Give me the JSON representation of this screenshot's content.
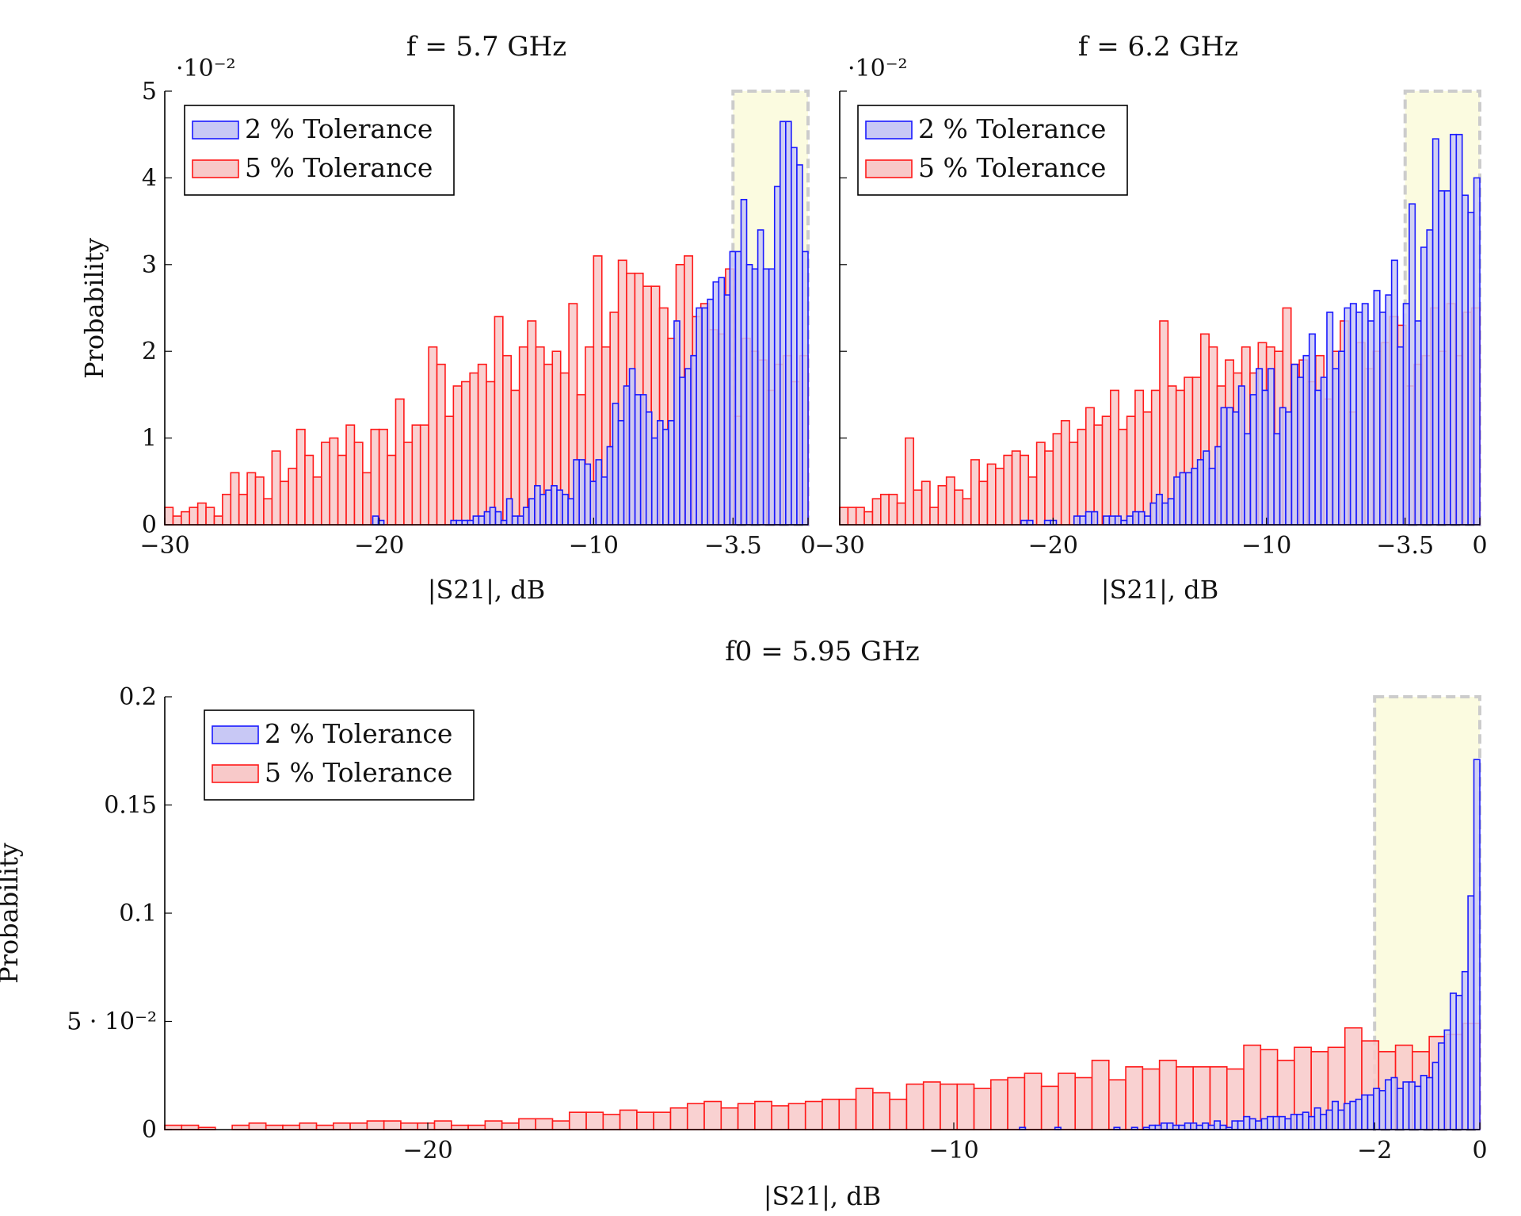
{
  "colors": {
    "tol2_stroke": "#1a1aff",
    "tol2_fill": "#c8c8f5",
    "tol5_stroke": "#ff1a1a",
    "tol5_fill": "#f8c9c9",
    "highlight_fill": "#fbfbe0",
    "highlight_stroke": "#cccccc"
  },
  "chart_data": [
    {
      "type": "bar",
      "title": "f = 5.7 GHz",
      "xlabel": "|S21|, dB",
      "ylabel": "Probability",
      "y_multiplier": "·10⁻²",
      "xlim": [
        -30,
        0
      ],
      "ylim": [
        0,
        5
      ],
      "xticks": [
        -30,
        -20,
        -10,
        -3.5,
        0
      ],
      "xtick_labels": [
        "−30",
        "−20",
        "−10",
        "−3.5",
        "0"
      ],
      "yticks": [
        0,
        1,
        2,
        3,
        4,
        5
      ],
      "ytick_labels": [
        "0",
        "1",
        "2",
        "3",
        "4",
        "5"
      ],
      "highlight_region": [
        -3.5,
        0
      ],
      "legend_position": "top-left",
      "series": [
        {
          "name": "2 % Tolerance",
          "bin_range": [
            -20.3,
            0
          ],
          "values": [
            0.1,
            0.05,
            0,
            0,
            0,
            0,
            0,
            0,
            0,
            0,
            0,
            0,
            0,
            0,
            0.05,
            0.05,
            0.05,
            0.05,
            0.1,
            0.1,
            0.15,
            0.2,
            0.15,
            0.05,
            0.3,
            0.1,
            0.1,
            0.2,
            0.3,
            0.45,
            0.35,
            0.4,
            0.45,
            0.4,
            0.35,
            0.3,
            0.75,
            0.75,
            0.7,
            0.5,
            0.75,
            0.55,
            0.9,
            1.4,
            1.2,
            1.6,
            1.8,
            1.5,
            1.5,
            1.3,
            1.0,
            1.2,
            1.1,
            1.2,
            2.35,
            1.7,
            1.8,
            1.95,
            2.5,
            2.5,
            2.6,
            2.8,
            2.85,
            2.65,
            3.15,
            3.15,
            3.75,
            3.0,
            2.95,
            3.4,
            2.95,
            2.95,
            3.9,
            4.65,
            4.65,
            4.35,
            4.15,
            3.15
          ]
        },
        {
          "name": "5 % Tolerance",
          "bin_range": [
            -30,
            0
          ],
          "values": [
            0.2,
            0.1,
            0.15,
            0.2,
            0.25,
            0.2,
            0.1,
            0.35,
            0.6,
            0.35,
            0.6,
            0.55,
            0.3,
            0.85,
            0.5,
            0.65,
            1.1,
            0.8,
            0.55,
            0.95,
            1.0,
            0.8,
            1.15,
            0.95,
            0.6,
            1.1,
            1.1,
            0.8,
            1.45,
            0.95,
            1.15,
            1.15,
            2.05,
            1.85,
            1.25,
            1.6,
            1.65,
            1.75,
            1.85,
            1.65,
            2.4,
            1.95,
            1.55,
            2.05,
            2.35,
            2.05,
            1.85,
            2.0,
            1.75,
            2.55,
            1.5,
            2.05,
            3.1,
            2.05,
            2.45,
            3.05,
            2.9,
            2.9,
            2.75,
            2.75,
            2.5,
            2.15,
            3.0,
            3.1,
            2.4,
            2.55,
            2.25,
            2.2,
            2.95,
            1.25,
            2.15,
            2.0,
            1.9,
            1.55,
            1.85,
            1.95,
            1.65,
            1.95
          ]
        }
      ]
    },
    {
      "type": "bar",
      "title": "f = 6.2 GHz",
      "xlabel": "|S21|, dB",
      "ylabel": "",
      "y_multiplier": "·10⁻²",
      "xlim": [
        -30,
        0
      ],
      "ylim": [
        0,
        5
      ],
      "xticks": [
        -30,
        -20,
        -10,
        -3.5,
        0
      ],
      "xtick_labels": [
        "−30",
        "−20",
        "−10",
        "−3.5",
        "0"
      ],
      "yticks": [
        0,
        1,
        2,
        3,
        4,
        5
      ],
      "ytick_labels": [
        "",
        "",
        "",
        "",
        "",
        ""
      ],
      "highlight_region": [
        -3.5,
        0
      ],
      "legend_position": "top-left",
      "series": [
        {
          "name": "2 % Tolerance",
          "bin_range": [
            -21.5,
            0
          ],
          "values": [
            0.05,
            0.05,
            0,
            0,
            0.05,
            0.05,
            0,
            0,
            0,
            0.1,
            0.1,
            0.15,
            0.15,
            0,
            0.1,
            0.1,
            0.1,
            0.05,
            0.1,
            0.15,
            0.15,
            0.1,
            0.25,
            0.35,
            0.25,
            0.3,
            0.55,
            0.6,
            0.6,
            0.65,
            0.75,
            0.85,
            0.65,
            0.9,
            1.35,
            1.35,
            1.3,
            1.6,
            1.05,
            1.5,
            1.8,
            1.55,
            1.8,
            1.05,
            1.35,
            1.3,
            1.85,
            1.7,
            1.95,
            2.2,
            1.55,
            1.7,
            2.45,
            1.8,
            2.0,
            2.5,
            2.55,
            2.45,
            2.55,
            2.35,
            2.7,
            2.45,
            2.65,
            3.05,
            2.05,
            2.55,
            3.7,
            2.35,
            3.2,
            3.4,
            4.45,
            3.85,
            3.85,
            4.5,
            4.5,
            3.8,
            3.6,
            4.0
          ]
        },
        {
          "name": "5 % Tolerance",
          "bin_range": [
            -30,
            0
          ],
          "values": [
            0.2,
            0.2,
            0.2,
            0.15,
            0.3,
            0.35,
            0.35,
            0.25,
            1.0,
            0.4,
            0.5,
            0.2,
            0.45,
            0.55,
            0.4,
            0.3,
            0.75,
            0.5,
            0.7,
            0.65,
            0.8,
            0.85,
            0.8,
            0.55,
            0.95,
            0.85,
            1.05,
            1.2,
            0.95,
            1.1,
            1.35,
            1.15,
            1.25,
            1.55,
            1.1,
            1.25,
            1.55,
            1.3,
            1.55,
            2.35,
            1.6,
            1.55,
            1.7,
            1.7,
            2.2,
            2.05,
            1.6,
            1.9,
            1.75,
            2.05,
            1.75,
            2.1,
            2.05,
            2.0,
            2.5,
            1.85,
            1.9,
            1.65,
            1.95,
            1.45,
            2.0,
            2.35,
            1.3,
            2.1,
            1.8,
            2.0,
            2.1,
            2.4,
            2.3,
            1.6,
            1.85,
            1.95,
            2.5,
            2.0,
            2.55,
            1.95,
            2.45,
            2.5
          ]
        }
      ]
    },
    {
      "type": "bar",
      "title": "f0 = 5.95 GHz",
      "xlabel": "|S21|, dB",
      "ylabel": "Probability",
      "y_multiplier": "",
      "xlim": [
        -25,
        0
      ],
      "ylim": [
        0,
        0.2
      ],
      "xticks": [
        -20,
        -10,
        -2,
        0
      ],
      "xtick_labels": [
        "−20",
        "−10",
        "−2",
        "0"
      ],
      "yticks": [
        0,
        0.05,
        0.1,
        0.15,
        0.2
      ],
      "ytick_labels": [
        "0",
        "5 · 10⁻²",
        "0.1",
        "0.15",
        "0.2"
      ],
      "highlight_region": [
        -2,
        0
      ],
      "legend_position": "top-left",
      "series": [
        {
          "name": "2 % Tolerance",
          "bin_range": [
            -8.75,
            0
          ],
          "values": [
            0.001,
            0,
            0,
            0,
            0,
            0,
            0.001,
            0,
            0,
            0,
            0,
            0,
            0,
            0,
            0,
            0,
            0.001,
            0,
            0,
            0.001,
            0,
            0.001,
            0.002,
            0.002,
            0.003,
            0.003,
            0.002,
            0.002,
            0.003,
            0.003,
            0.002,
            0.003,
            0.002,
            0.004,
            0.002,
            0.001,
            0.004,
            0.004,
            0.006,
            0.005,
            0.004,
            0.005,
            0.006,
            0.006,
            0.006,
            0.005,
            0.007,
            0.007,
            0.008,
            0.006,
            0.01,
            0.007,
            0.009,
            0.013,
            0.009,
            0.012,
            0.013,
            0.014,
            0.016,
            0.016,
            0.019,
            0.018,
            0.023,
            0.024,
            0.019,
            0.022,
            0.022,
            0.02,
            0.025,
            0.024,
            0.031,
            0.04,
            0.046,
            0.063,
            0.062,
            0.073,
            0.108,
            0.171
          ]
        },
        {
          "name": "5 % Tolerance",
          "bin_range": [
            -25,
            0
          ],
          "values": [
            0.002,
            0.002,
            0.001,
            0,
            0.002,
            0.003,
            0.002,
            0.002,
            0.003,
            0.002,
            0.003,
            0.003,
            0.004,
            0.004,
            0.003,
            0.003,
            0.004,
            0.002,
            0.002,
            0.004,
            0.003,
            0.005,
            0.005,
            0.004,
            0.008,
            0.008,
            0.007,
            0.009,
            0.008,
            0.008,
            0.01,
            0.012,
            0.013,
            0.01,
            0.012,
            0.013,
            0.011,
            0.012,
            0.013,
            0.014,
            0.014,
            0.019,
            0.017,
            0.014,
            0.021,
            0.022,
            0.021,
            0.021,
            0.019,
            0.023,
            0.024,
            0.026,
            0.02,
            0.026,
            0.024,
            0.032,
            0.023,
            0.029,
            0.028,
            0.032,
            0.029,
            0.029,
            0.029,
            0.028,
            0.039,
            0.037,
            0.032,
            0.038,
            0.036,
            0.038,
            0.047,
            0.041,
            0.036,
            0.039,
            0.036,
            0.043,
            0.044,
            0.049
          ]
        }
      ]
    }
  ]
}
